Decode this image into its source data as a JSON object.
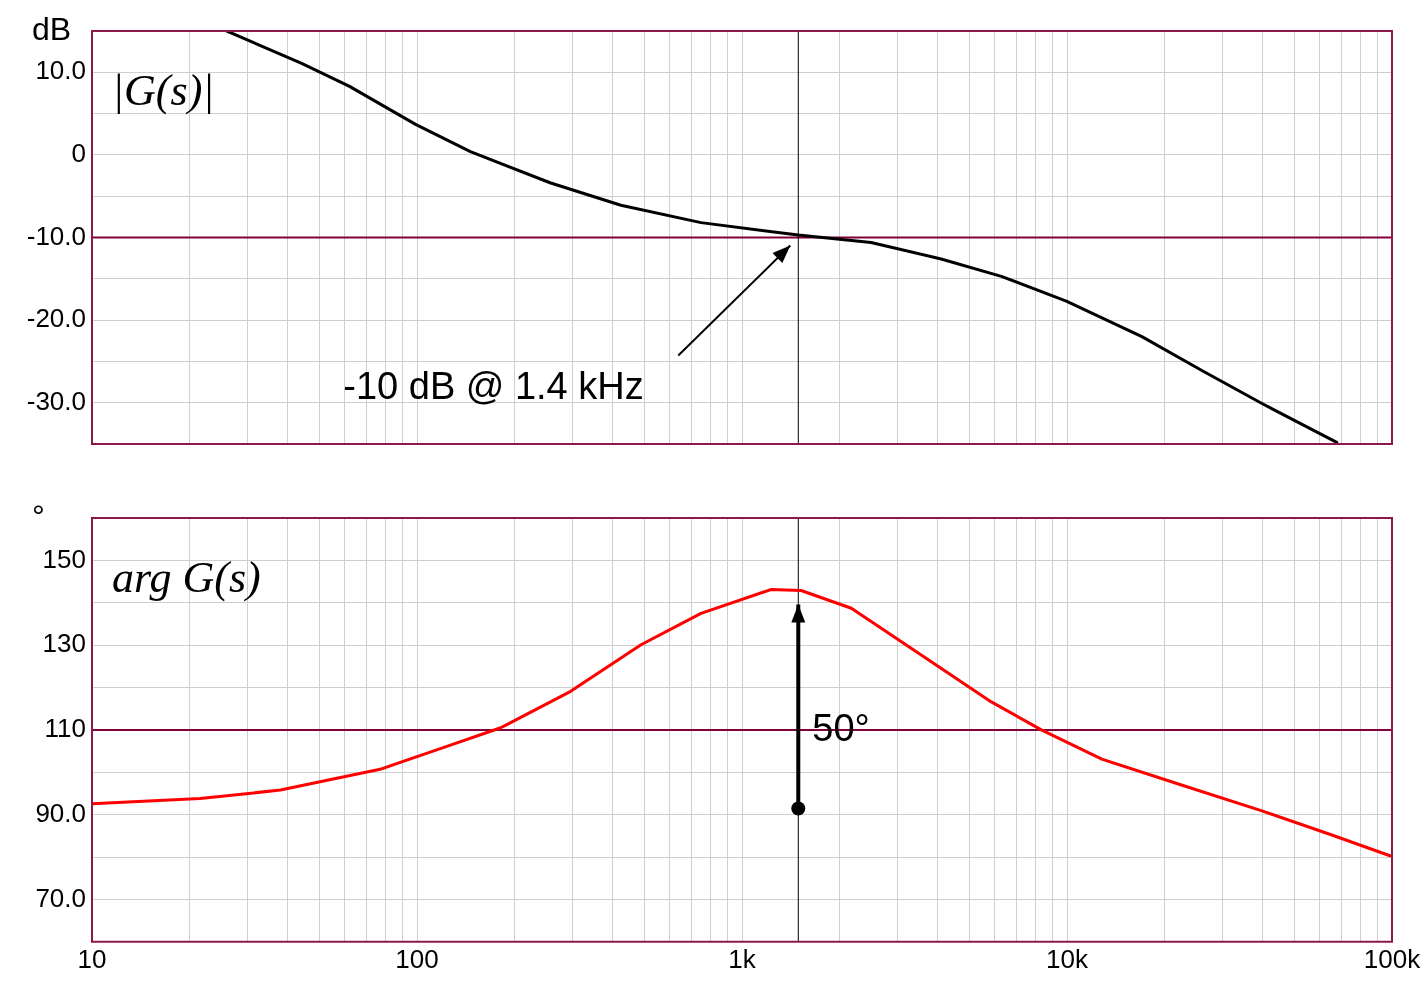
{
  "chart_data": [
    {
      "type": "line",
      "title": "|G(s)|",
      "ylabel": "dB",
      "xlim": [
        10,
        100000
      ],
      "xticks": [
        {
          "value": 20,
          "label": null
        },
        {
          "value": 30,
          "label": null
        },
        {
          "value": 40,
          "label": null
        },
        {
          "value": 50,
          "label": null
        },
        {
          "value": 60,
          "label": null
        },
        {
          "value": 70,
          "label": null
        },
        {
          "value": 80,
          "label": null
        },
        {
          "value": 90,
          "label": null
        },
        {
          "value": 100,
          "label": null
        },
        {
          "value": 200,
          "label": null
        },
        {
          "value": 300,
          "label": null
        },
        {
          "value": 400,
          "label": null
        },
        {
          "value": 500,
          "label": null
        },
        {
          "value": 600,
          "label": null
        },
        {
          "value": 700,
          "label": null
        },
        {
          "value": 800,
          "label": null
        },
        {
          "value": 900,
          "label": null
        },
        {
          "value": 1000,
          "label": null
        },
        {
          "value": 2000,
          "label": null
        },
        {
          "value": 3000,
          "label": null
        },
        {
          "value": 4000,
          "label": null
        },
        {
          "value": 5000,
          "label": null
        },
        {
          "value": 6000,
          "label": null
        },
        {
          "value": 7000,
          "label": null
        },
        {
          "value": 8000,
          "label": null
        },
        {
          "value": 9000,
          "label": null
        },
        {
          "value": 10000,
          "label": null
        },
        {
          "value": 20000,
          "label": null
        },
        {
          "value": 30000,
          "label": null
        },
        {
          "value": 40000,
          "label": null
        },
        {
          "value": 50000,
          "label": null
        },
        {
          "value": 60000,
          "label": null
        },
        {
          "value": 70000,
          "label": null
        },
        {
          "value": 80000,
          "label": null
        },
        {
          "value": 90000,
          "label": null
        }
      ],
      "ylim": [
        -35,
        15
      ],
      "yticks": [
        {
          "value": 10,
          "label": "10.0"
        },
        {
          "value": 5,
          "label": null
        },
        0,
        {
          "value": -5,
          "label": null
        },
        {
          "value": -10,
          "label": "-10.0"
        },
        {
          "value": -15,
          "label": null
        },
        {
          "value": -20,
          "label": "-20.0"
        },
        {
          "value": -25,
          "label": null
        },
        {
          "value": -30,
          "label": "-30.0"
        }
      ],
      "log": "x",
      "grid": true,
      "legend": false,
      "marker": "none",
      "line_style": "solid",
      "tick_labels": "y",
      "series": [
        {
          "color": "#000000",
          "x": [
            26,
            44,
            62,
            99,
            146,
            258,
            424,
            748,
            1490,
            2495,
            4100,
            6280,
            9950,
            17000,
            26000,
            39800,
            67600
          ],
          "values": [
            15,
            11.1,
            8.3,
            3.7,
            0.4,
            -3.4,
            -6.1,
            -8.2,
            -9.7,
            -10.6,
            -12.6,
            -14.7,
            -17.7,
            -22,
            -26.1,
            -30.1,
            -34.8
          ]
        }
      ],
      "ref_lines": [
        {
          "axis": "y",
          "value": -10,
          "color": "#800040"
        },
        {
          "axis": "x",
          "value": 1490,
          "color": "#000000"
        }
      ],
      "annotations": [
        "-10 dB @ 1.4 kHz"
      ]
    },
    {
      "type": "line",
      "title": "arg G(s)",
      "ylabel": "°",
      "xlim": [
        10,
        100000
      ],
      "xticks": [
        10,
        {
          "value": 20,
          "label": null
        },
        {
          "value": 30,
          "label": null
        },
        {
          "value": 40,
          "label": null
        },
        {
          "value": 50,
          "label": null
        },
        {
          "value": 60,
          "label": null
        },
        {
          "value": 70,
          "label": null
        },
        {
          "value": 80,
          "label": null
        },
        {
          "value": 90,
          "label": null
        },
        100,
        {
          "value": 200,
          "label": null
        },
        {
          "value": 300,
          "label": null
        },
        {
          "value": 400,
          "label": null
        },
        {
          "value": 500,
          "label": null
        },
        {
          "value": 600,
          "label": null
        },
        {
          "value": 700,
          "label": null
        },
        {
          "value": 800,
          "label": null
        },
        {
          "value": 900,
          "label": null
        },
        {
          "value": 1000,
          "label": "1k"
        },
        {
          "value": 2000,
          "label": null
        },
        {
          "value": 3000,
          "label": null
        },
        {
          "value": 4000,
          "label": null
        },
        {
          "value": 5000,
          "label": null
        },
        {
          "value": 6000,
          "label": null
        },
        {
          "value": 7000,
          "label": null
        },
        {
          "value": 8000,
          "label": null
        },
        {
          "value": 9000,
          "label": null
        },
        {
          "value": 10000,
          "label": "10k"
        },
        {
          "value": 20000,
          "label": null
        },
        {
          "value": 30000,
          "label": null
        },
        {
          "value": 40000,
          "label": null
        },
        {
          "value": 50000,
          "label": null
        },
        {
          "value": 60000,
          "label": null
        },
        {
          "value": 70000,
          "label": null
        },
        {
          "value": 80000,
          "label": null
        },
        {
          "value": 90000,
          "label": null
        },
        {
          "value": 100000,
          "label": "100k"
        }
      ],
      "ylim": [
        60,
        160
      ],
      "yticks": [
        {
          "value": 160,
          "label": null
        },
        150,
        {
          "value": 140,
          "label": null
        },
        130,
        {
          "value": 120,
          "label": null
        },
        110,
        {
          "value": 100,
          "label": null
        },
        {
          "value": 90,
          "label": "90.0"
        },
        {
          "value": 80,
          "label": null
        },
        {
          "value": 70,
          "label": "70.0"
        }
      ],
      "log": "x",
      "grid": true,
      "legend": false,
      "marker": "none",
      "line_style": "solid",
      "series": [
        {
          "color": "#ff0000",
          "x": [
            10,
            21.5,
            38,
            77,
            118,
            181,
            297,
            489,
            748,
            1227,
            1520,
            2170,
            3560,
            5850,
            8340,
            12800,
            22500,
            39800,
            65300,
            98600
          ],
          "values": [
            92.6,
            93.8,
            95.8,
            100.7,
            105.6,
            110.5,
            119.1,
            130.1,
            137.5,
            143.1,
            142.9,
            138.7,
            127.7,
            116.6,
            110,
            103.1,
            97,
            90.9,
            85.2,
            80.3
          ]
        }
      ],
      "ref_lines": [
        {
          "axis": "y",
          "value": 110,
          "color": "#800040"
        },
        {
          "axis": "x",
          "value": 1490,
          "color": "#000000"
        }
      ],
      "annotations": [
        {
          "text": "50°",
          "x": 1490,
          "y": 141
        }
      ]
    }
  ]
}
